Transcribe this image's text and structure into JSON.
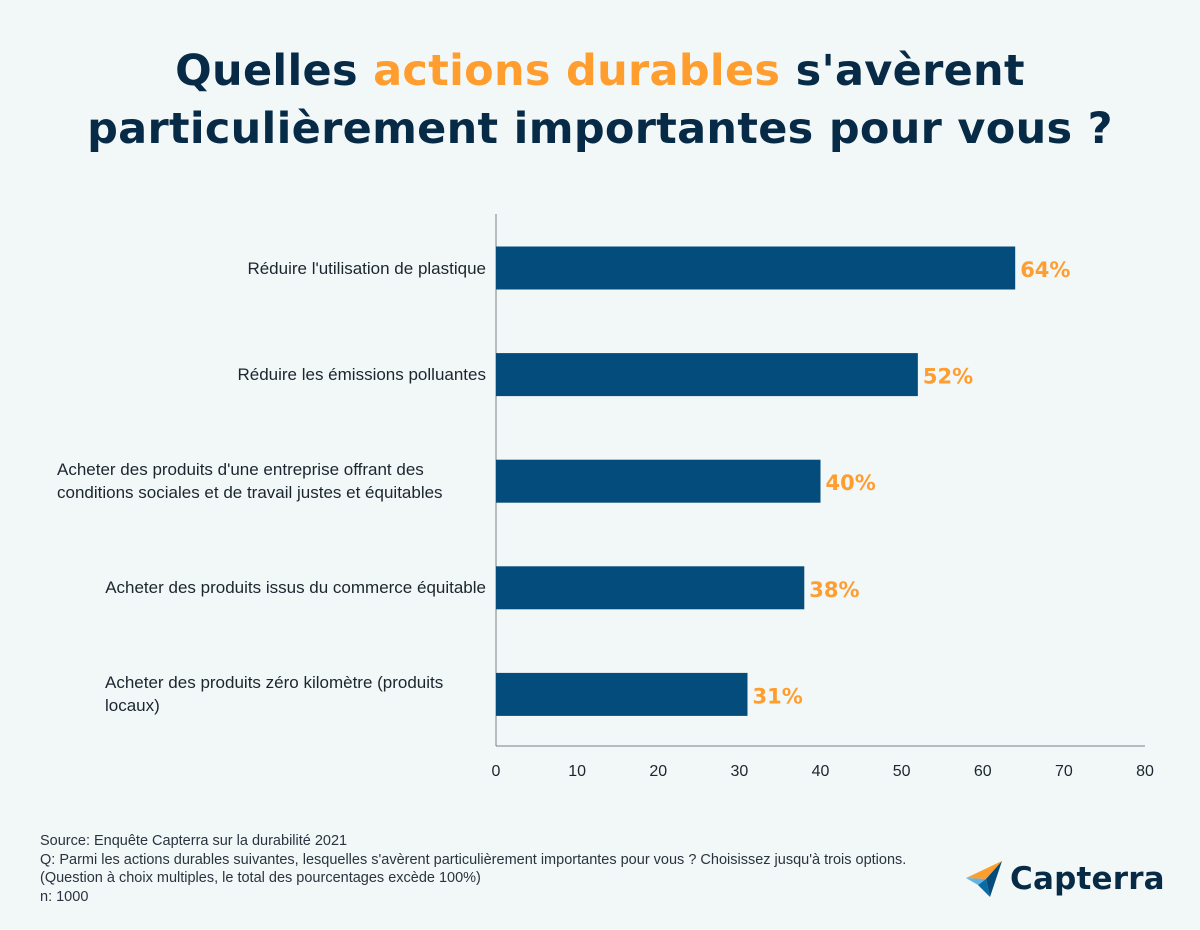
{
  "title": {
    "part1": "Quelles ",
    "highlight": "actions durables",
    "part2": " s'avèrent",
    "line2": "particulièrement importantes pour vous ?"
  },
  "colors": {
    "bar": "#044c7c",
    "value_label": "#ff9d2e",
    "title": "#072b46",
    "highlight": "#ff9d2e",
    "axis": "#7a8088"
  },
  "chart_data": {
    "type": "bar",
    "orientation": "horizontal",
    "categories": [
      "Réduire l'utilisation de plastique",
      "Réduire les émissions polluantes",
      "Acheter des produits d'une entreprise offrant des conditions sociales et de travail justes et équitables",
      "Acheter des produits issus du commerce équitable",
      "Acheter des produits zéro kilomètre (produits locaux)"
    ],
    "values": [
      64,
      52,
      40,
      38,
      31
    ],
    "value_labels": [
      "64%",
      "52%",
      "40%",
      "38%",
      "31%"
    ],
    "xlim": [
      0,
      80
    ],
    "xticks": [
      "0",
      "10",
      "20",
      "30",
      "40",
      "50",
      "60",
      "70",
      "80"
    ],
    "title": "Quelles actions durables s'avèrent particulièrement importantes pour vous ?",
    "xlabel": "",
    "ylabel": "",
    "grid": false
  },
  "footer": {
    "source": "Source: Enquête Capterra sur la durabilité 2021",
    "question": "Q: Parmi les actions durables suivantes, lesquelles s'avèrent particulièrement importantes pour vous ? Choisissez jusqu'à trois options. (Question à choix multiples, le total des pourcentages excède 100%)",
    "n": "n: 1000"
  },
  "logo": {
    "text": "Capterra",
    "icon": "capterra-arrow-icon"
  }
}
